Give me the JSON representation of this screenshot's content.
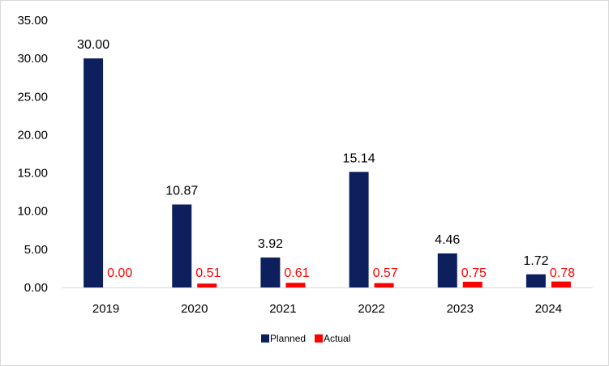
{
  "chart_data": {
    "type": "bar",
    "title": "",
    "xlabel": "",
    "ylabel": "",
    "categories": [
      "2019",
      "2020",
      "2021",
      "2022",
      "2023",
      "2024"
    ],
    "series": [
      {
        "name": "Planned",
        "color": "#0d1f5c",
        "values": [
          30.0,
          10.87,
          3.92,
          15.14,
          4.46,
          1.72
        ],
        "labels": [
          "30.00",
          "10.87",
          "3.92",
          "15.14",
          "4.46",
          "1.72"
        ],
        "label_color": "#000000"
      },
      {
        "name": "Actual",
        "color": "#ff0000",
        "values": [
          0.0,
          0.51,
          0.61,
          0.57,
          0.75,
          0.78
        ],
        "labels": [
          "0.00",
          "0.51",
          "0.61",
          "0.57",
          "0.75",
          "0.78"
        ],
        "label_color": "#ff0000"
      }
    ],
    "ylim": [
      0,
      35
    ],
    "yticks": [
      "0.00",
      "5.00",
      "10.00",
      "15.00",
      "20.00",
      "25.00",
      "30.00",
      "35.00"
    ],
    "grid": false,
    "legend_position": "bottom"
  }
}
